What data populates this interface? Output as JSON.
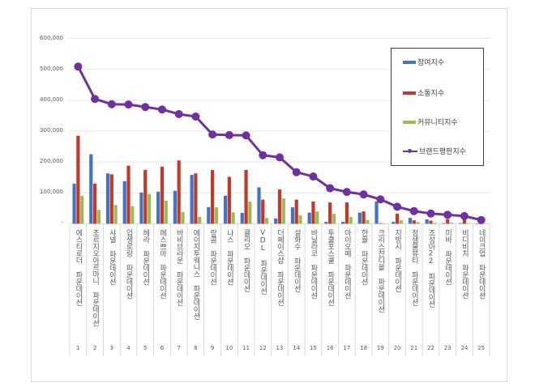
{
  "chart_data": {
    "type": "bar+line",
    "title": "",
    "xlabel": "",
    "ylabel": "",
    "ylim": [
      0,
      600000
    ],
    "yticks": [
      "-",
      "100,000",
      "200,000",
      "300,000",
      "400,000",
      "500,000",
      "600,000"
    ],
    "ytick_values": [
      0,
      100000,
      200000,
      300000,
      400000,
      500000,
      600000
    ],
    "grid": "horizontal",
    "legend_position": "top-right",
    "categories": [
      "에스티로더 파운데이션",
      "조르지오아르마니 파운데이션",
      "샤넬 파운데이션",
      "입생로랑 파운데이션",
      "헤라 파운데이션",
      "에스쁘아 파운데이션",
      "바비브라운 파운데이션",
      "에이지투웨니스 파운데이션",
      "랑콤 파운데이션",
      "나스 파운데이션",
      "클리오 파운데이션",
      "VDL 파운데이션",
      "더페이스샵 파운데이션",
      "설화수 파운데이션",
      "바닐라코 파운데이션",
      "투쿨포스쿨 파운데이션",
      "아이오페 파운데이션",
      "한율 파운데이션",
      "크리스챤디올 파운데이션",
      "지방시 파운데이션",
      "정샘물뷰티 파운데이션",
      "조성아22 파운데이션",
      "미바 파운데이션",
      "비디비치 파운데이션",
      "네이크업 파운데이션"
    ],
    "ranks": [
      "1",
      "2",
      "3",
      "4",
      "5",
      "6",
      "7",
      "8",
      "9",
      "10",
      "11",
      "12",
      "13",
      "14",
      "15",
      "16",
      "17",
      "18",
      "19",
      "20",
      "21",
      "22",
      "23",
      "24",
      "25"
    ],
    "series": [
      {
        "name": "참여지수",
        "type": "bar",
        "color": "#4472c4",
        "values": [
          130000,
          225000,
          163000,
          138000,
          101000,
          104000,
          107000,
          158000,
          54000,
          91000,
          35000,
          118000,
          17000,
          53000,
          36000,
          6000,
          6000,
          36000,
          72000,
          6000,
          19000,
          14000,
          2000,
          2000,
          1000
        ]
      },
      {
        "name": "소통지수",
        "type": "bar",
        "color": "#c0392b",
        "values": [
          285000,
          130000,
          160000,
          188000,
          174000,
          185000,
          205000,
          163000,
          174000,
          152000,
          174000,
          78000,
          111000,
          78000,
          72000,
          69000,
          69000,
          40000,
          2000,
          33000,
          11000,
          10000,
          15000,
          19000,
          2000
        ]
      },
      {
        "name": "커뮤니티지수",
        "type": "bar",
        "color": "#9bbb59",
        "values": [
          90000,
          45000,
          61000,
          57000,
          96000,
          75000,
          38000,
          22000,
          53000,
          37000,
          72000,
          19000,
          82000,
          27000,
          40000,
          32000,
          22000,
          12000,
          1000,
          11000,
          5000,
          3000,
          3000,
          2000,
          1000
        ]
      },
      {
        "name": "브랜드평판지수",
        "type": "line",
        "color": "#7030a0",
        "values": [
          509000,
          404000,
          387000,
          386000,
          378000,
          370000,
          355000,
          347000,
          289000,
          287000,
          286000,
          222000,
          215000,
          167000,
          153000,
          115000,
          103000,
          95000,
          79000,
          55000,
          41000,
          33000,
          29000,
          25000,
          12000
        ]
      }
    ]
  }
}
